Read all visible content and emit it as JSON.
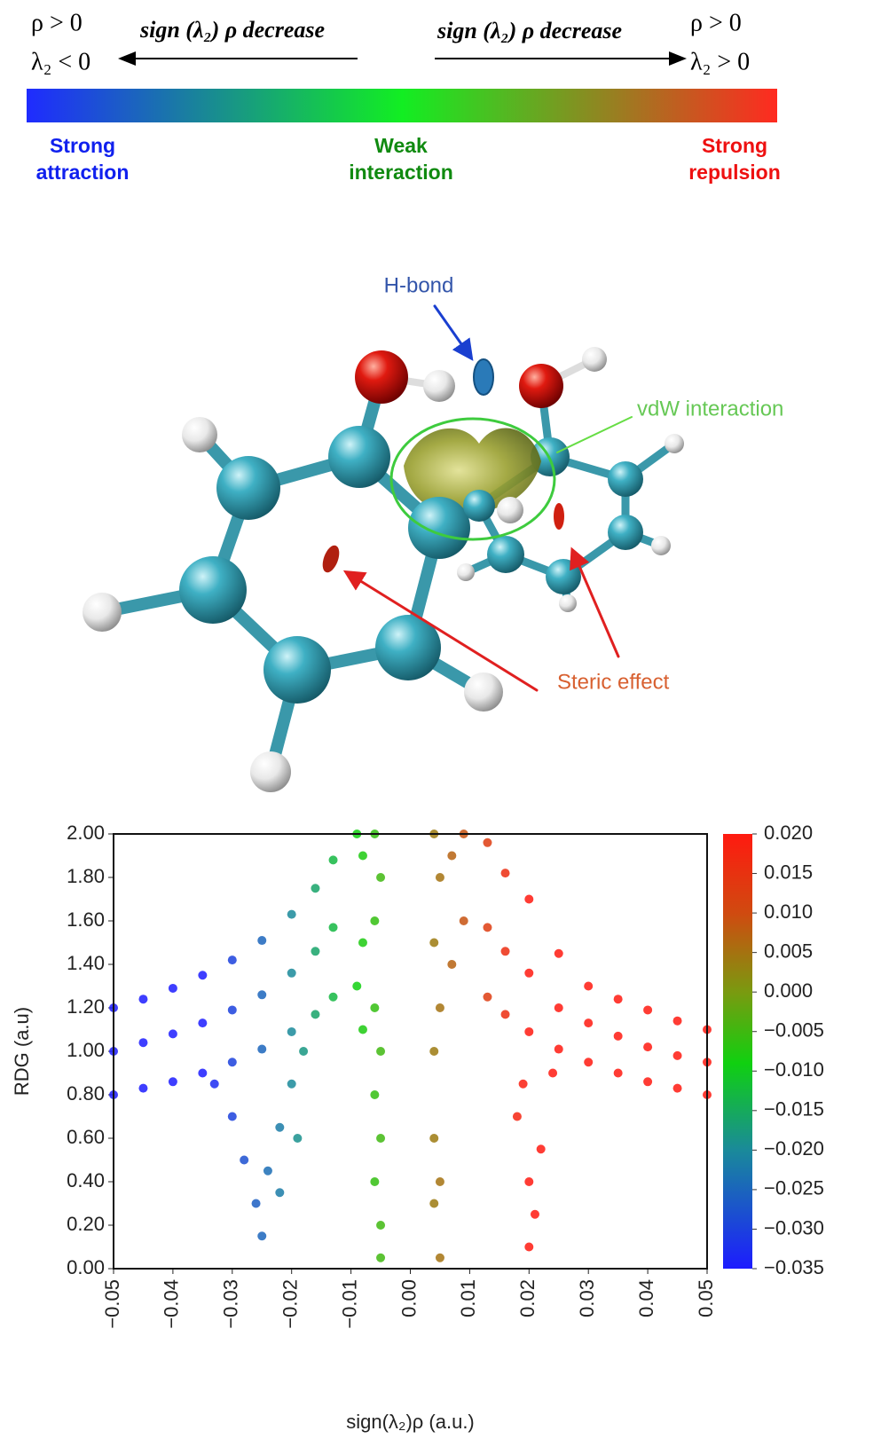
{
  "header": {
    "left": [
      "ρ > 0",
      "λ₂ < 0"
    ],
    "left_arrow": "sign (λ₂) ρ decrease",
    "right_arrow": "sign (λ₂) ρ decrease",
    "right": [
      "ρ > 0",
      "λ₂ > 0"
    ],
    "bar_colors": [
      "#1f2bff",
      "#12ee22",
      "#ff2a20"
    ],
    "scale_labels": [
      {
        "lines": [
          "Strong",
          "attraction"
        ],
        "color": "#1020ee"
      },
      {
        "lines": [
          "Weak",
          "interaction"
        ],
        "color": "#108a10"
      },
      {
        "lines": [
          "Strong",
          "repulsion"
        ],
        "color": "#ee1010"
      }
    ]
  },
  "molecule": {
    "labels": [
      "H-bond",
      "vdW interaction",
      "Steric effect"
    ]
  },
  "chart_data": {
    "type": "scatter",
    "xlabel": "sign(λ₂)ρ (a.u.)",
    "ylabel": "RDG (a.u)",
    "xlim": [
      -0.05,
      0.05
    ],
    "ylim": [
      0,
      2
    ],
    "xticks": [
      {
        "value": -0.05,
        "label": "−0.05"
      },
      {
        "value": -0.04,
        "label": "−0.04"
      },
      {
        "value": -0.03,
        "label": "−0.03"
      },
      {
        "value": -0.02,
        "label": "−0.02"
      },
      {
        "value": -0.01,
        "label": "−0.01"
      },
      {
        "value": 0,
        "label": "0.00"
      },
      {
        "value": 0.01,
        "label": "0.01"
      },
      {
        "value": 0.02,
        "label": "0.02"
      },
      {
        "value": 0.03,
        "label": "0.03"
      },
      {
        "value": 0.04,
        "label": "0.04"
      },
      {
        "value": 0.05,
        "label": "0.05"
      }
    ],
    "yticks": [
      {
        "value": 0,
        "label": "0.00"
      },
      {
        "value": 0.2,
        "label": "0.20"
      },
      {
        "value": 0.4,
        "label": "0.40"
      },
      {
        "value": 0.6,
        "label": "0.60"
      },
      {
        "value": 0.8,
        "label": "0.80"
      },
      {
        "value": 1,
        "label": "1.00"
      },
      {
        "value": 1.2,
        "label": "1.20"
      },
      {
        "value": 1.4,
        "label": "1.40"
      },
      {
        "value": 1.6,
        "label": "1.60"
      },
      {
        "value": 1.8,
        "label": "1.80"
      },
      {
        "value": 2,
        "label": "2.00"
      }
    ],
    "colorbar": {
      "lim": [
        -0.035,
        0.02
      ],
      "stops": [
        {
          "value": -0.035,
          "color": "#1c1cff"
        },
        {
          "value": -0.02,
          "color": "#1a8a9a"
        },
        {
          "value": -0.009,
          "color": "#10d010"
        },
        {
          "value": 0,
          "color": "#7a9a10"
        },
        {
          "value": 0.01,
          "color": "#d04a10"
        },
        {
          "value": 0.02,
          "color": "#ff1a10"
        }
      ],
      "ticks": [
        {
          "value": 0.02,
          "label": "0.020"
        },
        {
          "value": 0.015,
          "label": "0.015"
        },
        {
          "value": 0.01,
          "label": "0.010"
        },
        {
          "value": 0.005,
          "label": "0.005"
        },
        {
          "value": 0,
          "label": "0.000"
        },
        {
          "value": -0.005,
          "label": "−0.005"
        },
        {
          "value": -0.01,
          "label": "−0.010"
        },
        {
          "value": -0.015,
          "label": "−0.015"
        },
        {
          "value": -0.02,
          "label": "−0.020"
        },
        {
          "value": -0.025,
          "label": "−0.025"
        },
        {
          "value": -0.03,
          "label": "−0.030"
        },
        {
          "value": -0.035,
          "label": "−0.035"
        }
      ]
    },
    "x": [
      -0.05,
      -0.05,
      -0.05,
      -0.045,
      -0.045,
      -0.045,
      -0.04,
      -0.04,
      -0.04,
      -0.035,
      -0.035,
      -0.035,
      -0.03,
      -0.03,
      -0.03,
      -0.025,
      -0.025,
      -0.025,
      -0.02,
      -0.02,
      -0.02,
      -0.016,
      -0.016,
      -0.016,
      -0.013,
      -0.013,
      -0.013,
      0.05,
      0.05,
      0.05,
      0.045,
      0.045,
      0.045,
      0.04,
      0.04,
      0.04,
      0.035,
      0.035,
      0.035,
      0.03,
      0.03,
      0.03,
      0.025,
      0.025,
      0.025,
      0.02,
      0.02,
      0.02,
      0.016,
      0.016,
      0.016,
      0.013,
      0.013,
      0.013,
      -0.009,
      -0.009,
      -0.008,
      -0.008,
      -0.008,
      -0.006,
      -0.006,
      -0.006,
      -0.006,
      -0.006,
      -0.005,
      -0.005,
      -0.005,
      -0.005,
      -0.005,
      0.004,
      0.004,
      0.004,
      0.004,
      0.004,
      0.005,
      0.005,
      0.005,
      0.005,
      0.007,
      0.007,
      0.009,
      0.009,
      -0.033,
      -0.03,
      -0.028,
      -0.026,
      -0.025,
      -0.024,
      -0.022,
      -0.02,
      -0.018,
      -0.022,
      -0.019,
      0.018,
      0.02,
      0.02,
      0.021,
      0.022,
      0.019,
      0.024
    ],
    "values": [
      0.8,
      1.0,
      1.2,
      0.83,
      1.04,
      1.24,
      0.86,
      1.08,
      1.29,
      0.9,
      1.13,
      1.35,
      0.95,
      1.19,
      1.42,
      1.01,
      1.26,
      1.51,
      1.09,
      1.36,
      1.63,
      1.17,
      1.46,
      1.75,
      1.25,
      1.57,
      1.88,
      0.8,
      0.95,
      1.1,
      0.83,
      0.98,
      1.14,
      0.86,
      1.02,
      1.19,
      0.9,
      1.07,
      1.24,
      0.95,
      1.13,
      1.3,
      1.01,
      1.2,
      1.45,
      1.09,
      1.36,
      1.7,
      1.17,
      1.46,
      1.82,
      1.25,
      1.57,
      1.96,
      2.0,
      1.3,
      1.9,
      1.5,
      1.1,
      2.0,
      1.6,
      1.2,
      0.8,
      0.4,
      1.8,
      1.0,
      0.6,
      0.2,
      0.05,
      2.0,
      1.5,
      1.0,
      0.6,
      0.3,
      1.8,
      1.2,
      0.4,
      0.05,
      1.9,
      1.4,
      2.0,
      1.6,
      0.85,
      0.7,
      0.5,
      0.3,
      0.15,
      0.45,
      0.65,
      0.85,
      1.0,
      0.35,
      0.6,
      0.7,
      0.4,
      0.1,
      0.25,
      0.55,
      0.85,
      0.9
    ]
  }
}
